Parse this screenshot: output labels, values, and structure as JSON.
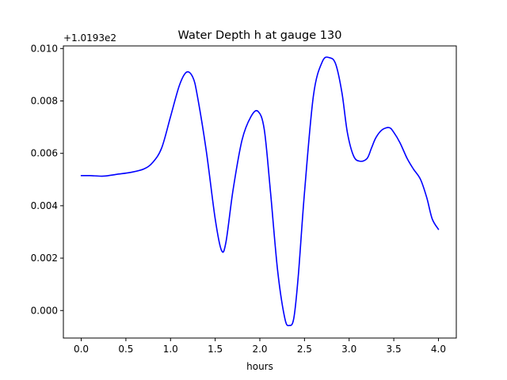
{
  "chart_data": {
    "type": "line",
    "title": "Water Depth h at gauge 130",
    "xlabel": "hours",
    "ylabel": "",
    "y_offset_label": "+1.0193e2",
    "xlim": [
      -0.2,
      4.2
    ],
    "ylim": [
      -0.00105,
      0.0101
    ],
    "x_ticks": [
      0.0,
      0.5,
      1.0,
      1.5,
      2.0,
      2.5,
      3.0,
      3.5,
      4.0
    ],
    "x_tick_labels": [
      "0.0",
      "0.5",
      "1.0",
      "1.5",
      "2.0",
      "2.5",
      "3.0",
      "3.5",
      "4.0"
    ],
    "y_ticks": [
      0.0,
      0.002,
      0.004,
      0.006,
      0.008,
      0.01
    ],
    "y_tick_labels": [
      "0.000",
      "0.002",
      "0.004",
      "0.006",
      "0.008",
      "0.010"
    ],
    "grid": false,
    "legend": "none",
    "series": [
      {
        "color": "#0000ff",
        "x": [
          0.0,
          0.1,
          0.25,
          0.4,
          0.55,
          0.7,
          0.8,
          0.9,
          1.0,
          1.1,
          1.18,
          1.25,
          1.3,
          1.4,
          1.5,
          1.57,
          1.62,
          1.7,
          1.8,
          1.9,
          1.98,
          2.05,
          2.12,
          2.2,
          2.28,
          2.33,
          2.38,
          2.43,
          2.5,
          2.6,
          2.7,
          2.78,
          2.85,
          2.92,
          2.98,
          3.05,
          3.12,
          3.2,
          3.25,
          3.3,
          3.37,
          3.45,
          3.5,
          3.57,
          3.65,
          3.72,
          3.8,
          3.87,
          3.93,
          4.0
        ],
        "y": [
          0.00515,
          0.00515,
          0.00513,
          0.0052,
          0.00527,
          0.0054,
          0.00565,
          0.0062,
          0.0074,
          0.0086,
          0.0091,
          0.0089,
          0.0082,
          0.0061,
          0.0035,
          0.0023,
          0.0026,
          0.0046,
          0.0065,
          0.0074,
          0.0076,
          0.0069,
          0.0045,
          0.0015,
          -0.0003,
          -0.00057,
          -0.0003,
          0.0013,
          0.0045,
          0.0082,
          0.0095,
          0.00965,
          0.0094,
          0.0083,
          0.0068,
          0.0059,
          0.0057,
          0.0058,
          0.0062,
          0.0066,
          0.0069,
          0.00698,
          0.0068,
          0.0064,
          0.0058,
          0.0054,
          0.005,
          0.0043,
          0.0035,
          0.0031
        ]
      }
    ]
  }
}
